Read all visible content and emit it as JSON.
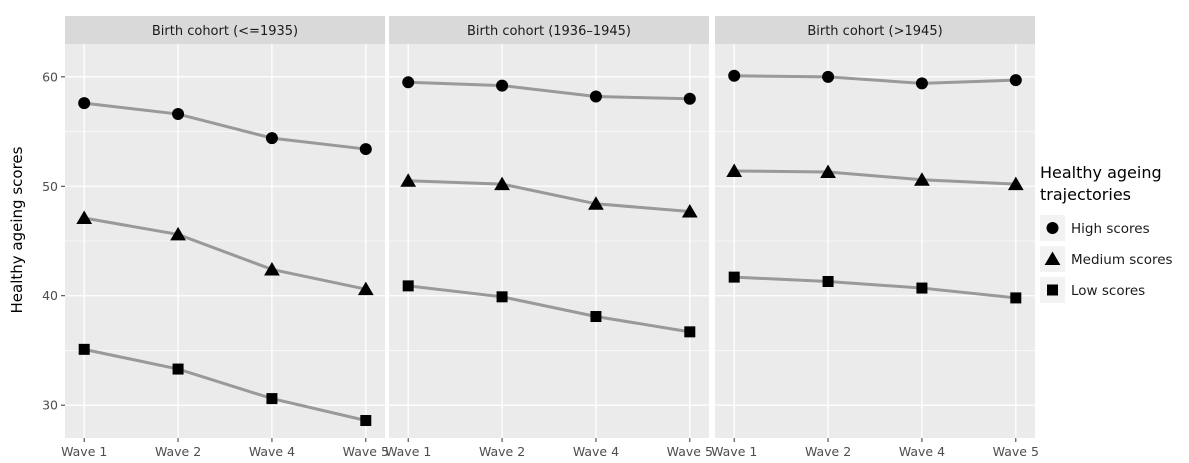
{
  "chart_data": {
    "type": "line",
    "ylabel": "Healthy ageing scores",
    "ylim": [
      27,
      63
    ],
    "yticks": [
      30,
      40,
      50,
      60
    ],
    "categories": [
      "Wave 1",
      "Wave 2",
      "Wave 4",
      "Wave 5"
    ],
    "legend": {
      "title": "Healthy ageing\ntrajectories",
      "placement": "right",
      "entries": [
        {
          "name": "High scores",
          "marker": "circle"
        },
        {
          "name": "Medium scores",
          "marker": "triangle"
        },
        {
          "name": "Low scores",
          "marker": "square"
        }
      ]
    },
    "colors": {
      "panel_bg": "#ebebeb",
      "strip_bg": "#d9d9d9",
      "grid": "#ffffff",
      "line": "#999999",
      "marker": "#000000"
    },
    "panels": [
      {
        "title": "Birth cohort (<=1935)",
        "series": [
          {
            "name": "High scores",
            "values": [
              57.6,
              56.6,
              54.4,
              53.4
            ]
          },
          {
            "name": "Medium scores",
            "values": [
              47.1,
              45.6,
              42.4,
              40.6
            ]
          },
          {
            "name": "Low scores",
            "values": [
              35.1,
              33.3,
              30.6,
              28.6
            ]
          }
        ]
      },
      {
        "title": "Birth cohort (1936–1945)",
        "series": [
          {
            "name": "High scores",
            "values": [
              59.5,
              59.2,
              58.2,
              58.0
            ]
          },
          {
            "name": "Medium scores",
            "values": [
              50.5,
              50.2,
              48.4,
              47.7
            ]
          },
          {
            "name": "Low scores",
            "values": [
              40.9,
              39.9,
              38.1,
              36.7
            ]
          }
        ]
      },
      {
        "title": "Birth cohort (>1945)",
        "series": [
          {
            "name": "High scores",
            "values": [
              60.1,
              60.0,
              59.4,
              59.7
            ]
          },
          {
            "name": "Medium scores",
            "values": [
              51.4,
              51.3,
              50.6,
              50.2
            ]
          },
          {
            "name": "Low scores",
            "values": [
              41.7,
              41.3,
              40.7,
              39.8
            ]
          }
        ]
      }
    ]
  }
}
